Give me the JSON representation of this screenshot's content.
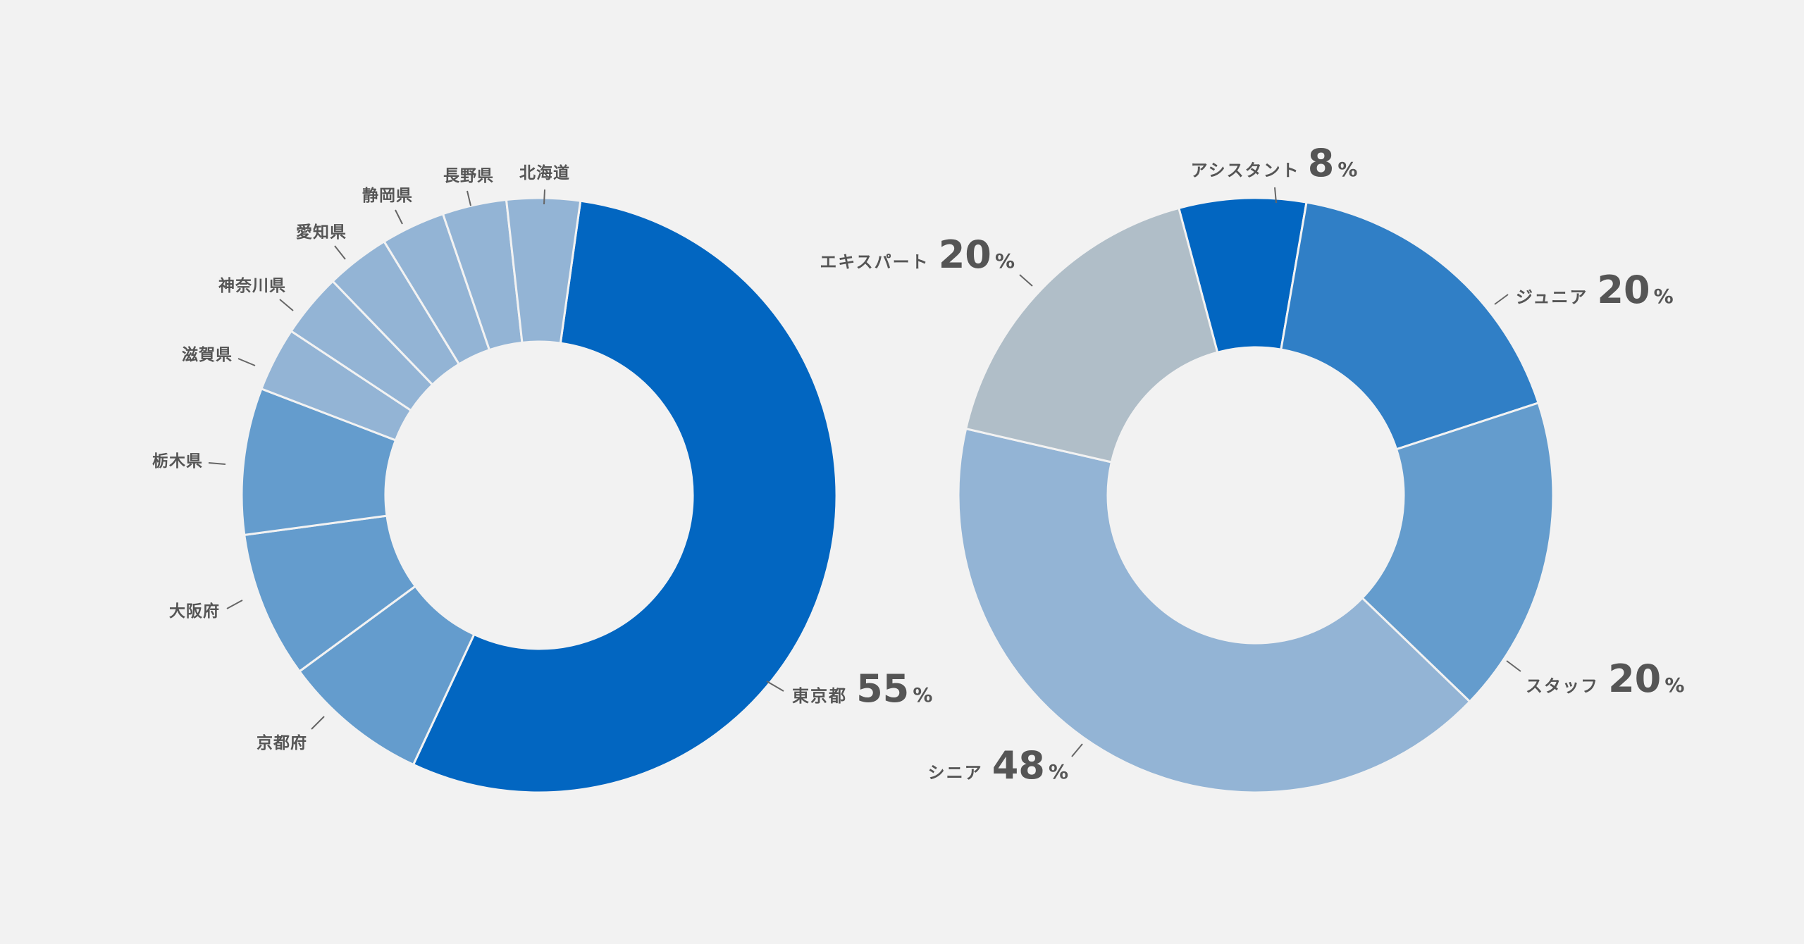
{
  "chart_data": [
    {
      "type": "donut",
      "categories": [
        "東京都",
        "京都府",
        "大阪府",
        "栃木県",
        "滋賀県",
        "神奈川県",
        "愛知県",
        "静岡県",
        "長野県",
        "北海道"
      ],
      "values": [
        55,
        8,
        8,
        8,
        3.5,
        3.5,
        3.5,
        3.5,
        3.5,
        4
      ],
      "labels": {
        "tokyo": "東京都",
        "tokyo_value": "55",
        "kyoto": "京都府",
        "osaka": "大阪府",
        "tochigi": "栃木県",
        "shiga": "滋賀県",
        "kanagawa": "神奈川県",
        "aichi": "愛知県",
        "shizuoka": "静岡県",
        "nagano": "長野県",
        "hokkaido": "北海道"
      },
      "unit": "%",
      "colors": [
        "#0266c1",
        "#649ccd",
        "#649ccd",
        "#649ccd",
        "#93b4d5",
        "#93b4d5",
        "#93b4d5",
        "#93b4d5",
        "#93b4d5",
        "#93b4d5"
      ]
    },
    {
      "type": "donut",
      "categories": [
        "アシスタント",
        "ジュニア",
        "スタッフ",
        "シニア",
        "エキスパート"
      ],
      "values": [
        8,
        20,
        20,
        48,
        20
      ],
      "labels": {
        "assistant": "アシスタント",
        "assistant_value": "8",
        "junior": "ジュニア",
        "junior_value": "20",
        "staff": "スタッフ",
        "staff_value": "20",
        "senior": "シニア",
        "senior_value": "48",
        "expert": "エキスパート",
        "expert_value": "20"
      },
      "unit": "%",
      "colors": [
        "#0266c1",
        "#307fc6",
        "#649ccd",
        "#93b4d5",
        "#b0bec8"
      ]
    }
  ]
}
